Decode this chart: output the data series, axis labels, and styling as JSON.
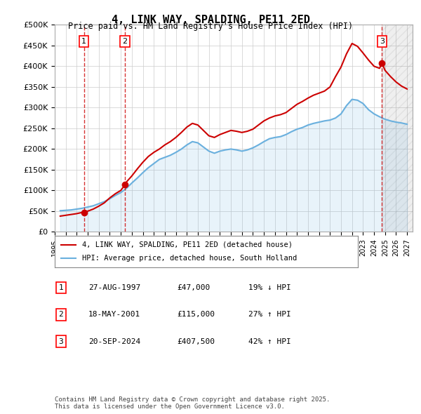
{
  "title": "4, LINK WAY, SPALDING, PE11 2ED",
  "subtitle": "Price paid vs. HM Land Registry's House Price Index (HPI)",
  "ylim": [
    0,
    500000
  ],
  "yticks": [
    0,
    50000,
    100000,
    150000,
    200000,
    250000,
    300000,
    350000,
    400000,
    450000,
    500000
  ],
  "ytick_labels": [
    "£0",
    "£50K",
    "£100K",
    "£150K",
    "£200K",
    "£250K",
    "£300K",
    "£350K",
    "£400K",
    "£450K",
    "£500K"
  ],
  "xlim_start": 1995.5,
  "xlim_end": 2027.5,
  "xticks": [
    1995,
    1996,
    1997,
    1998,
    1999,
    2000,
    2001,
    2002,
    2003,
    2004,
    2005,
    2006,
    2007,
    2008,
    2009,
    2010,
    2011,
    2012,
    2013,
    2014,
    2015,
    2016,
    2017,
    2018,
    2019,
    2020,
    2021,
    2022,
    2023,
    2024,
    2025,
    2026,
    2027
  ],
  "sale_dates": [
    1997.65,
    2001.38,
    2024.72
  ],
  "sale_prices": [
    47000,
    115000,
    407500
  ],
  "sale_labels": [
    "1",
    "2",
    "3"
  ],
  "hpi_line_color": "#6ab0de",
  "price_line_color": "#cc0000",
  "dashed_vline_color": "#cc0000",
  "background_color": "#ffffff",
  "grid_color": "#cccccc",
  "legend_label_price": "4, LINK WAY, SPALDING, PE11 2ED (detached house)",
  "legend_label_hpi": "HPI: Average price, detached house, South Holland",
  "table_rows": [
    {
      "num": "1",
      "date": "27-AUG-1997",
      "price": "£47,000",
      "hpi": "19% ↓ HPI"
    },
    {
      "num": "2",
      "date": "18-MAY-2001",
      "price": "£115,000",
      "hpi": "27% ↑ HPI"
    },
    {
      "num": "3",
      "date": "20-SEP-2024",
      "price": "£407,500",
      "hpi": "42% ↑ HPI"
    }
  ],
  "footer": "Contains HM Land Registry data © Crown copyright and database right 2025.\nThis data is licensed under the Open Government Licence v3.0.",
  "hpi_data_x": [
    1995.5,
    1996.0,
    1996.5,
    1997.0,
    1997.5,
    1998.0,
    1998.5,
    1999.0,
    1999.5,
    2000.0,
    2000.5,
    2001.0,
    2001.5,
    2002.0,
    2002.5,
    2003.0,
    2003.5,
    2004.0,
    2004.5,
    2005.0,
    2005.5,
    2006.0,
    2006.5,
    2007.0,
    2007.5,
    2008.0,
    2008.5,
    2009.0,
    2009.5,
    2010.0,
    2010.5,
    2011.0,
    2011.5,
    2012.0,
    2012.5,
    2013.0,
    2013.5,
    2014.0,
    2014.5,
    2015.0,
    2015.5,
    2016.0,
    2016.5,
    2017.0,
    2017.5,
    2018.0,
    2018.5,
    2019.0,
    2019.5,
    2020.0,
    2020.5,
    2021.0,
    2021.5,
    2022.0,
    2022.5,
    2023.0,
    2023.5,
    2024.0,
    2024.5,
    2025.0,
    2025.5,
    2026.0,
    2026.5,
    2027.0
  ],
  "hpi_data_y": [
    51000,
    52000,
    53000,
    55000,
    57000,
    60000,
    63000,
    68000,
    73000,
    80000,
    88000,
    95000,
    105000,
    118000,
    130000,
    143000,
    155000,
    165000,
    175000,
    180000,
    185000,
    192000,
    200000,
    210000,
    218000,
    215000,
    205000,
    195000,
    190000,
    195000,
    198000,
    200000,
    198000,
    195000,
    198000,
    203000,
    210000,
    218000,
    225000,
    228000,
    230000,
    235000,
    242000,
    248000,
    252000,
    258000,
    262000,
    265000,
    268000,
    270000,
    275000,
    285000,
    305000,
    320000,
    318000,
    310000,
    295000,
    285000,
    278000,
    272000,
    268000,
    265000,
    263000,
    260000
  ],
  "price_data_x": [
    1995.5,
    1996.0,
    1996.5,
    1997.0,
    1997.5,
    1998.0,
    1998.5,
    1999.0,
    1999.5,
    2000.0,
    2000.5,
    2001.0,
    2001.2,
    2001.38,
    2001.5,
    2002.0,
    2002.5,
    2003.0,
    2003.5,
    2004.0,
    2004.5,
    2005.0,
    2005.5,
    2006.0,
    2006.5,
    2007.0,
    2007.5,
    2008.0,
    2008.5,
    2009.0,
    2009.5,
    2010.0,
    2010.5,
    2011.0,
    2011.5,
    2012.0,
    2012.5,
    2013.0,
    2013.5,
    2014.0,
    2014.5,
    2015.0,
    2015.5,
    2016.0,
    2016.5,
    2017.0,
    2017.5,
    2018.0,
    2018.5,
    2019.0,
    2019.5,
    2020.0,
    2020.5,
    2021.0,
    2021.5,
    2022.0,
    2022.5,
    2023.0,
    2023.5,
    2024.0,
    2024.5,
    2024.72,
    2025.0,
    2025.5,
    2026.0,
    2026.5,
    2027.0
  ],
  "price_data_y": [
    38000,
    40000,
    42000,
    44000,
    47000,
    50000,
    55000,
    62000,
    70000,
    82000,
    92000,
    100000,
    107000,
    115000,
    120000,
    135000,
    152000,
    168000,
    182000,
    192000,
    200000,
    210000,
    218000,
    228000,
    240000,
    253000,
    262000,
    258000,
    245000,
    232000,
    228000,
    235000,
    240000,
    245000,
    243000,
    240000,
    243000,
    248000,
    258000,
    268000,
    275000,
    280000,
    283000,
    288000,
    298000,
    308000,
    315000,
    323000,
    330000,
    335000,
    340000,
    350000,
    375000,
    398000,
    430000,
    455000,
    448000,
    432000,
    415000,
    400000,
    395000,
    407500,
    390000,
    375000,
    362000,
    352000,
    345000
  ],
  "hatch_start": 2024.72,
  "hatch_end": 2027.5
}
